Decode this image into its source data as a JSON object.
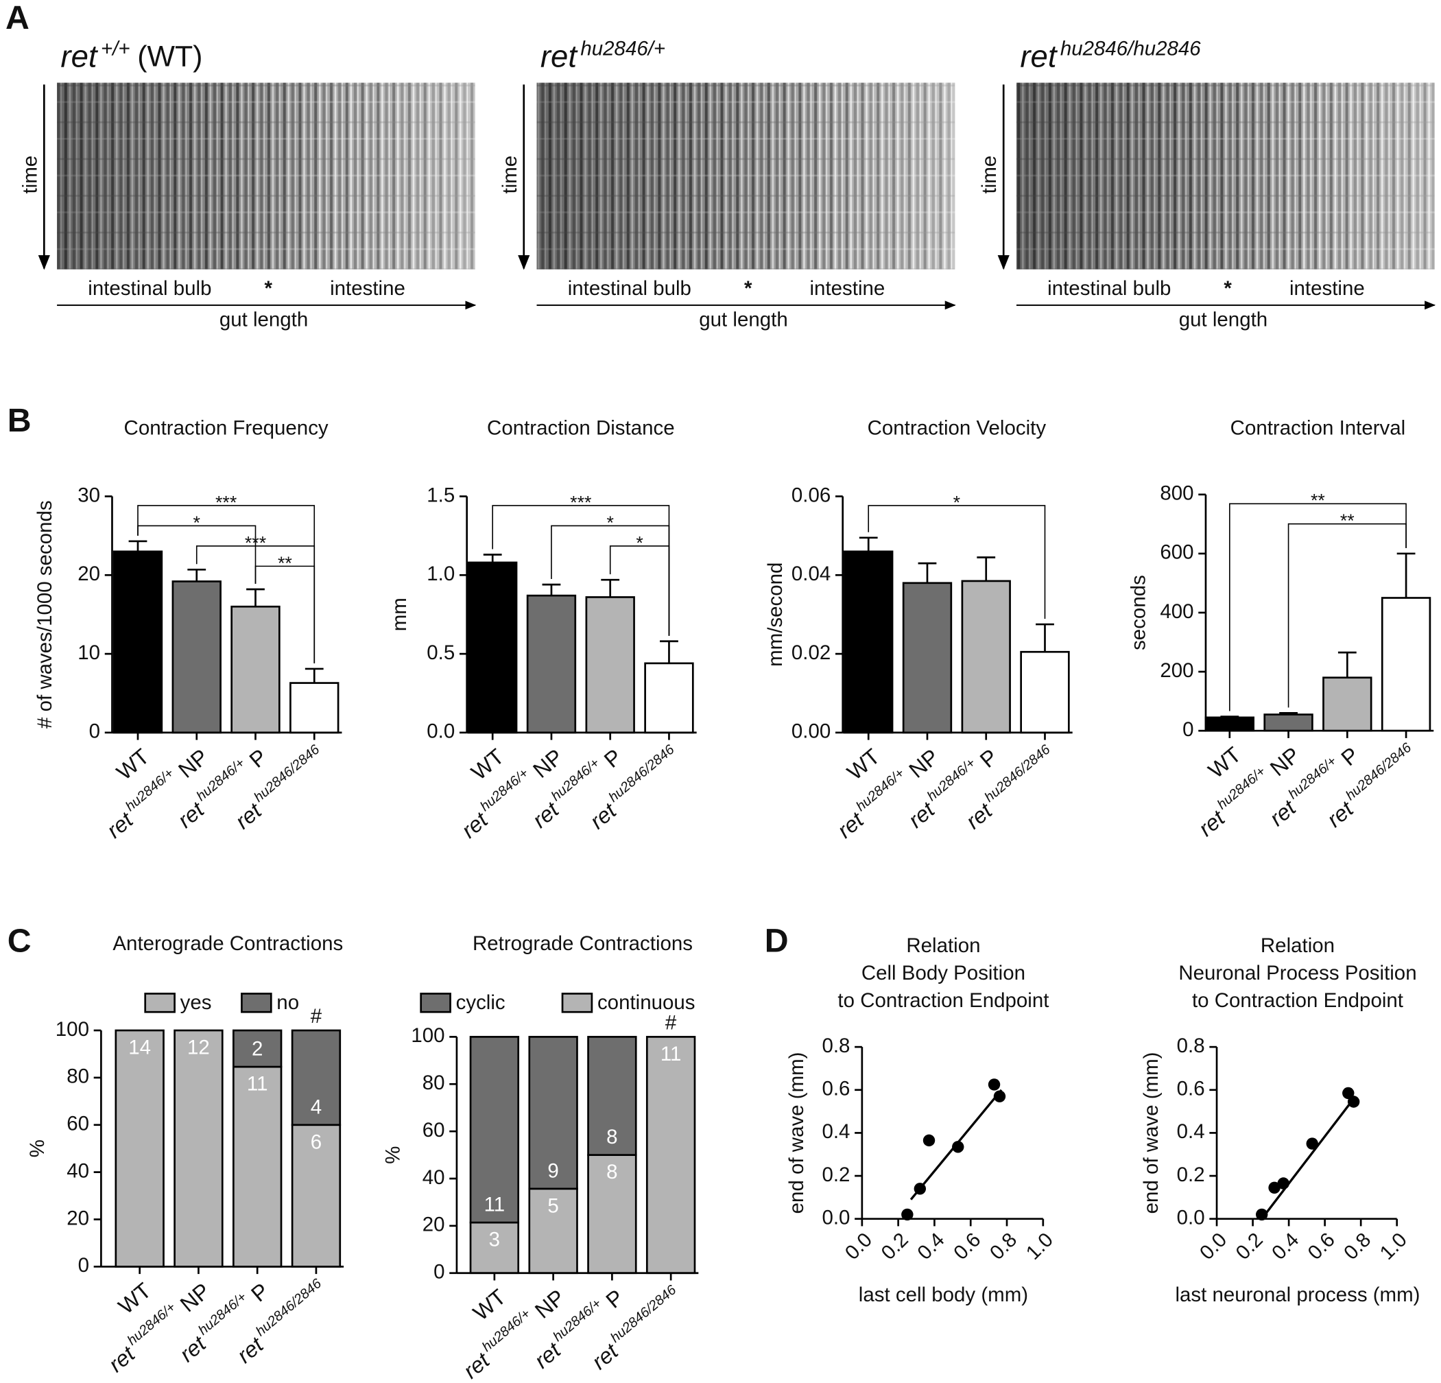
{
  "panels": [
    "A",
    "B",
    "C",
    "D"
  ],
  "kymographs": [
    {
      "gene": "ret",
      "genotype": "+/+",
      "suffix": "(WT)",
      "y_label": "time",
      "regions": [
        "intestinal bulb",
        "*",
        "intestine"
      ],
      "x_label": "gut length"
    },
    {
      "gene": "ret",
      "genotype": "hu2846/+",
      "y_label": "time",
      "regions": [
        "intestinal bulb",
        "*",
        "intestine"
      ],
      "x_label": "gut length"
    },
    {
      "gene": "ret",
      "genotype": "hu2846/hu2846",
      "y_label": "time",
      "regions": [
        "intestinal bulb",
        "*",
        "intestine"
      ],
      "x_label": "gut length"
    }
  ],
  "chart_data": [
    {
      "type": "bar",
      "title": "Contraction Frequency",
      "y_label": "# of waves/1000 seconds",
      "categories": [
        "WT",
        "ret hu2846/+ NP",
        "ret hu2846/+ P",
        "ret hu2846/2846"
      ],
      "values": [
        23,
        19.2,
        16,
        6.3
      ],
      "errors": [
        1.3,
        1.5,
        2.2,
        1.8
      ],
      "colors": [
        "#000000",
        "#6e6e6e",
        "#b4b4b4",
        "#ffffff"
      ],
      "ylim": [
        0,
        30
      ],
      "yticks": [
        0,
        10,
        20,
        30
      ],
      "significance": [
        {
          "between": [
            0,
            3
          ],
          "label": "***"
        },
        {
          "between": [
            0,
            2
          ],
          "label": "*"
        },
        {
          "between": [
            1,
            3
          ],
          "label": "***"
        },
        {
          "between": [
            2,
            3
          ],
          "label": "**"
        }
      ]
    },
    {
      "type": "bar",
      "title": "Contraction Distance",
      "y_label": "mm",
      "categories": [
        "WT",
        "ret hu2846/+ NP",
        "ret hu2846/+ P",
        "ret hu2846/2846"
      ],
      "values": [
        1.08,
        0.87,
        0.86,
        0.44
      ],
      "errors": [
        0.05,
        0.07,
        0.11,
        0.14
      ],
      "colors": [
        "#000000",
        "#6e6e6e",
        "#b4b4b4",
        "#ffffff"
      ],
      "ylim": [
        0,
        1.5
      ],
      "yticks": [
        {
          "value": 0,
          "label": "0.0"
        },
        0.5,
        {
          "value": 1,
          "label": "1.0"
        },
        1.5
      ],
      "significance": [
        {
          "between": [
            0,
            3
          ],
          "label": "***"
        },
        {
          "between": [
            1,
            3
          ],
          "label": "*"
        },
        {
          "between": [
            2,
            3
          ],
          "label": "*"
        }
      ]
    },
    {
      "type": "bar",
      "title": "Contraction Velocity",
      "y_label": "mm/second",
      "categories": [
        "WT",
        "ret hu2846/+ NP",
        "ret hu2846/+ P",
        "ret hu2846/2846"
      ],
      "values": [
        0.046,
        0.038,
        0.0385,
        0.0205
      ],
      "errors": [
        0.0035,
        0.005,
        0.006,
        0.007
      ],
      "colors": [
        "#000000",
        "#6e6e6e",
        "#b4b4b4",
        "#ffffff"
      ],
      "ylim": [
        0,
        0.06
      ],
      "yticks": [
        {
          "value": 0,
          "label": "0.00"
        },
        {
          "value": 0.02,
          "label": "0.02"
        },
        {
          "value": 0.04,
          "label": "0.04"
        },
        {
          "value": 0.06,
          "label": "0.06"
        }
      ],
      "significance": [
        {
          "between": [
            0,
            3
          ],
          "label": "*"
        }
      ]
    },
    {
      "type": "bar",
      "title": "Contraction Interval",
      "y_label": "seconds",
      "categories": [
        "WT",
        "ret hu2846/+ NP",
        "ret hu2846/+ P",
        "ret hu2846/2846"
      ],
      "values": [
        45,
        55,
        180,
        450
      ],
      "errors": [
        3,
        5,
        85,
        150
      ],
      "colors": [
        "#000000",
        "#6e6e6e",
        "#b4b4b4",
        "#ffffff"
      ],
      "ylim": [
        0,
        800
      ],
      "yticks": [
        0,
        200,
        400,
        600,
        800
      ],
      "significance": [
        {
          "between": [
            0,
            3
          ],
          "label": "**"
        },
        {
          "between": [
            1,
            3
          ],
          "label": "**"
        }
      ]
    },
    {
      "type": "stacked_bar",
      "title": "Anterograde Contractions",
      "y_label": "%",
      "categories": [
        "WT",
        "ret hu2846/+ NP",
        "ret hu2846/+ P",
        "ret hu2846/2846"
      ],
      "series": [
        {
          "name": "yes",
          "color": "#b4b4b4",
          "values": [
            100,
            100,
            84.6,
            60
          ],
          "counts": [
            14,
            12,
            11,
            6
          ]
        },
        {
          "name": "no",
          "color": "#6e6e6e",
          "values": [
            0,
            0,
            15.4,
            40
          ],
          "counts": [
            null,
            null,
            2,
            4
          ]
        }
      ],
      "stack_order": "bottom_first",
      "ylim": [
        0,
        100
      ],
      "yticks": [
        0,
        20,
        40,
        60,
        80,
        100
      ],
      "marks": [
        {
          "at": 3,
          "label": "#"
        }
      ]
    },
    {
      "type": "stacked_bar",
      "title": "Retrograde Contractions",
      "y_label": "%",
      "categories": [
        "WT",
        "ret hu2846/+ NP",
        "ret hu2846/+ P",
        "ret hu2846/2846"
      ],
      "series": [
        {
          "name": "cyclic",
          "color": "#6e6e6e",
          "values": [
            78.6,
            64.3,
            50,
            0
          ],
          "counts": [
            11,
            9,
            8,
            null
          ]
        },
        {
          "name": "continuous",
          "color": "#b4b4b4",
          "values": [
            21.4,
            35.7,
            50,
            100
          ],
          "counts": [
            3,
            5,
            8,
            11
          ]
        }
      ],
      "stack_order": "top_first",
      "ylim": [
        0,
        100
      ],
      "yticks": [
        0,
        20,
        40,
        60,
        80,
        100
      ],
      "marks": [
        {
          "at": 3,
          "label": "#"
        }
      ]
    },
    {
      "type": "scatter",
      "title": [
        "Relation",
        "Cell Body Position",
        "to Contraction Endpoint"
      ],
      "x_label": "last cell body (mm)",
      "y_label": "end of wave (mm)",
      "x": [
        0.25,
        0.32,
        0.37,
        0.53,
        0.73,
        0.76
      ],
      "y": [
        0.02,
        0.14,
        0.365,
        0.335,
        0.625,
        0.57
      ],
      "fit": {
        "x": [
          0.27,
          0.77
        ],
        "y": [
          0.09,
          0.6
        ]
      },
      "xlim": [
        0,
        1
      ],
      "xticks": [
        {
          "value": 0,
          "label": "0.0"
        },
        0.2,
        0.4,
        0.6,
        0.8,
        {
          "value": 1,
          "label": "1.0"
        }
      ],
      "ylim": [
        0,
        0.8
      ],
      "yticks": [
        {
          "value": 0,
          "label": "0.0"
        },
        0.2,
        0.4,
        0.6,
        0.8
      ]
    },
    {
      "type": "scatter",
      "title": [
        "Relation",
        "Neuronal Process Position",
        "to Contraction Endpoint"
      ],
      "x_label": "last neuronal process (mm)",
      "y_label": "end of wave (mm)",
      "x": [
        0.25,
        0.32,
        0.37,
        0.53,
        0.73,
        0.76
      ],
      "y": [
        0.02,
        0.145,
        0.165,
        0.35,
        0.585,
        0.545
      ],
      "fit": {
        "x": [
          0.25,
          0.77
        ],
        "y": [
          0,
          0.57
        ]
      },
      "xlim": [
        0,
        1
      ],
      "xticks": [
        {
          "value": 0,
          "label": "0.0"
        },
        0.2,
        0.4,
        0.6,
        0.8,
        {
          "value": 1,
          "label": "1.0"
        }
      ],
      "ylim": [
        0,
        0.8
      ],
      "yticks": [
        {
          "value": 0,
          "label": "0.0"
        },
        0.2,
        0.4,
        0.6,
        0.8
      ]
    }
  ]
}
